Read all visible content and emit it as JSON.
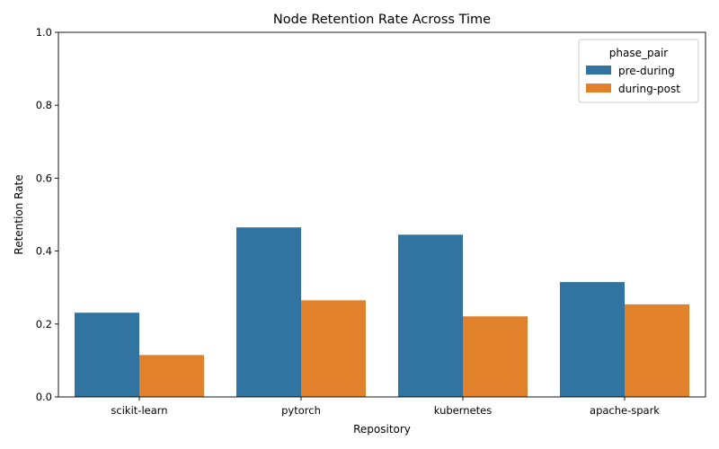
{
  "chart_data": {
    "type": "bar",
    "title": "Node Retention Rate Across Time",
    "xlabel": "Repository",
    "ylabel": "Retention Rate",
    "categories": [
      "scikit-learn",
      "pytorch",
      "kubernetes",
      "apache-spark"
    ],
    "series": [
      {
        "name": "pre-during",
        "values": [
          0.231,
          0.465,
          0.445,
          0.315
        ],
        "color": "#3274a1"
      },
      {
        "name": "during-post",
        "values": [
          0.115,
          0.265,
          0.221,
          0.254
        ],
        "color": "#e1812c"
      }
    ],
    "ylim": [
      0,
      1.0
    ],
    "yticks": [
      0.0,
      0.2,
      0.4,
      0.6,
      0.8,
      1.0
    ],
    "yticks_labels": [
      "0.0",
      "0.2",
      "0.4",
      "0.6",
      "0.8",
      "1.0"
    ],
    "grid": false,
    "legend": {
      "title": "phase_pair",
      "position": "top-right"
    }
  }
}
